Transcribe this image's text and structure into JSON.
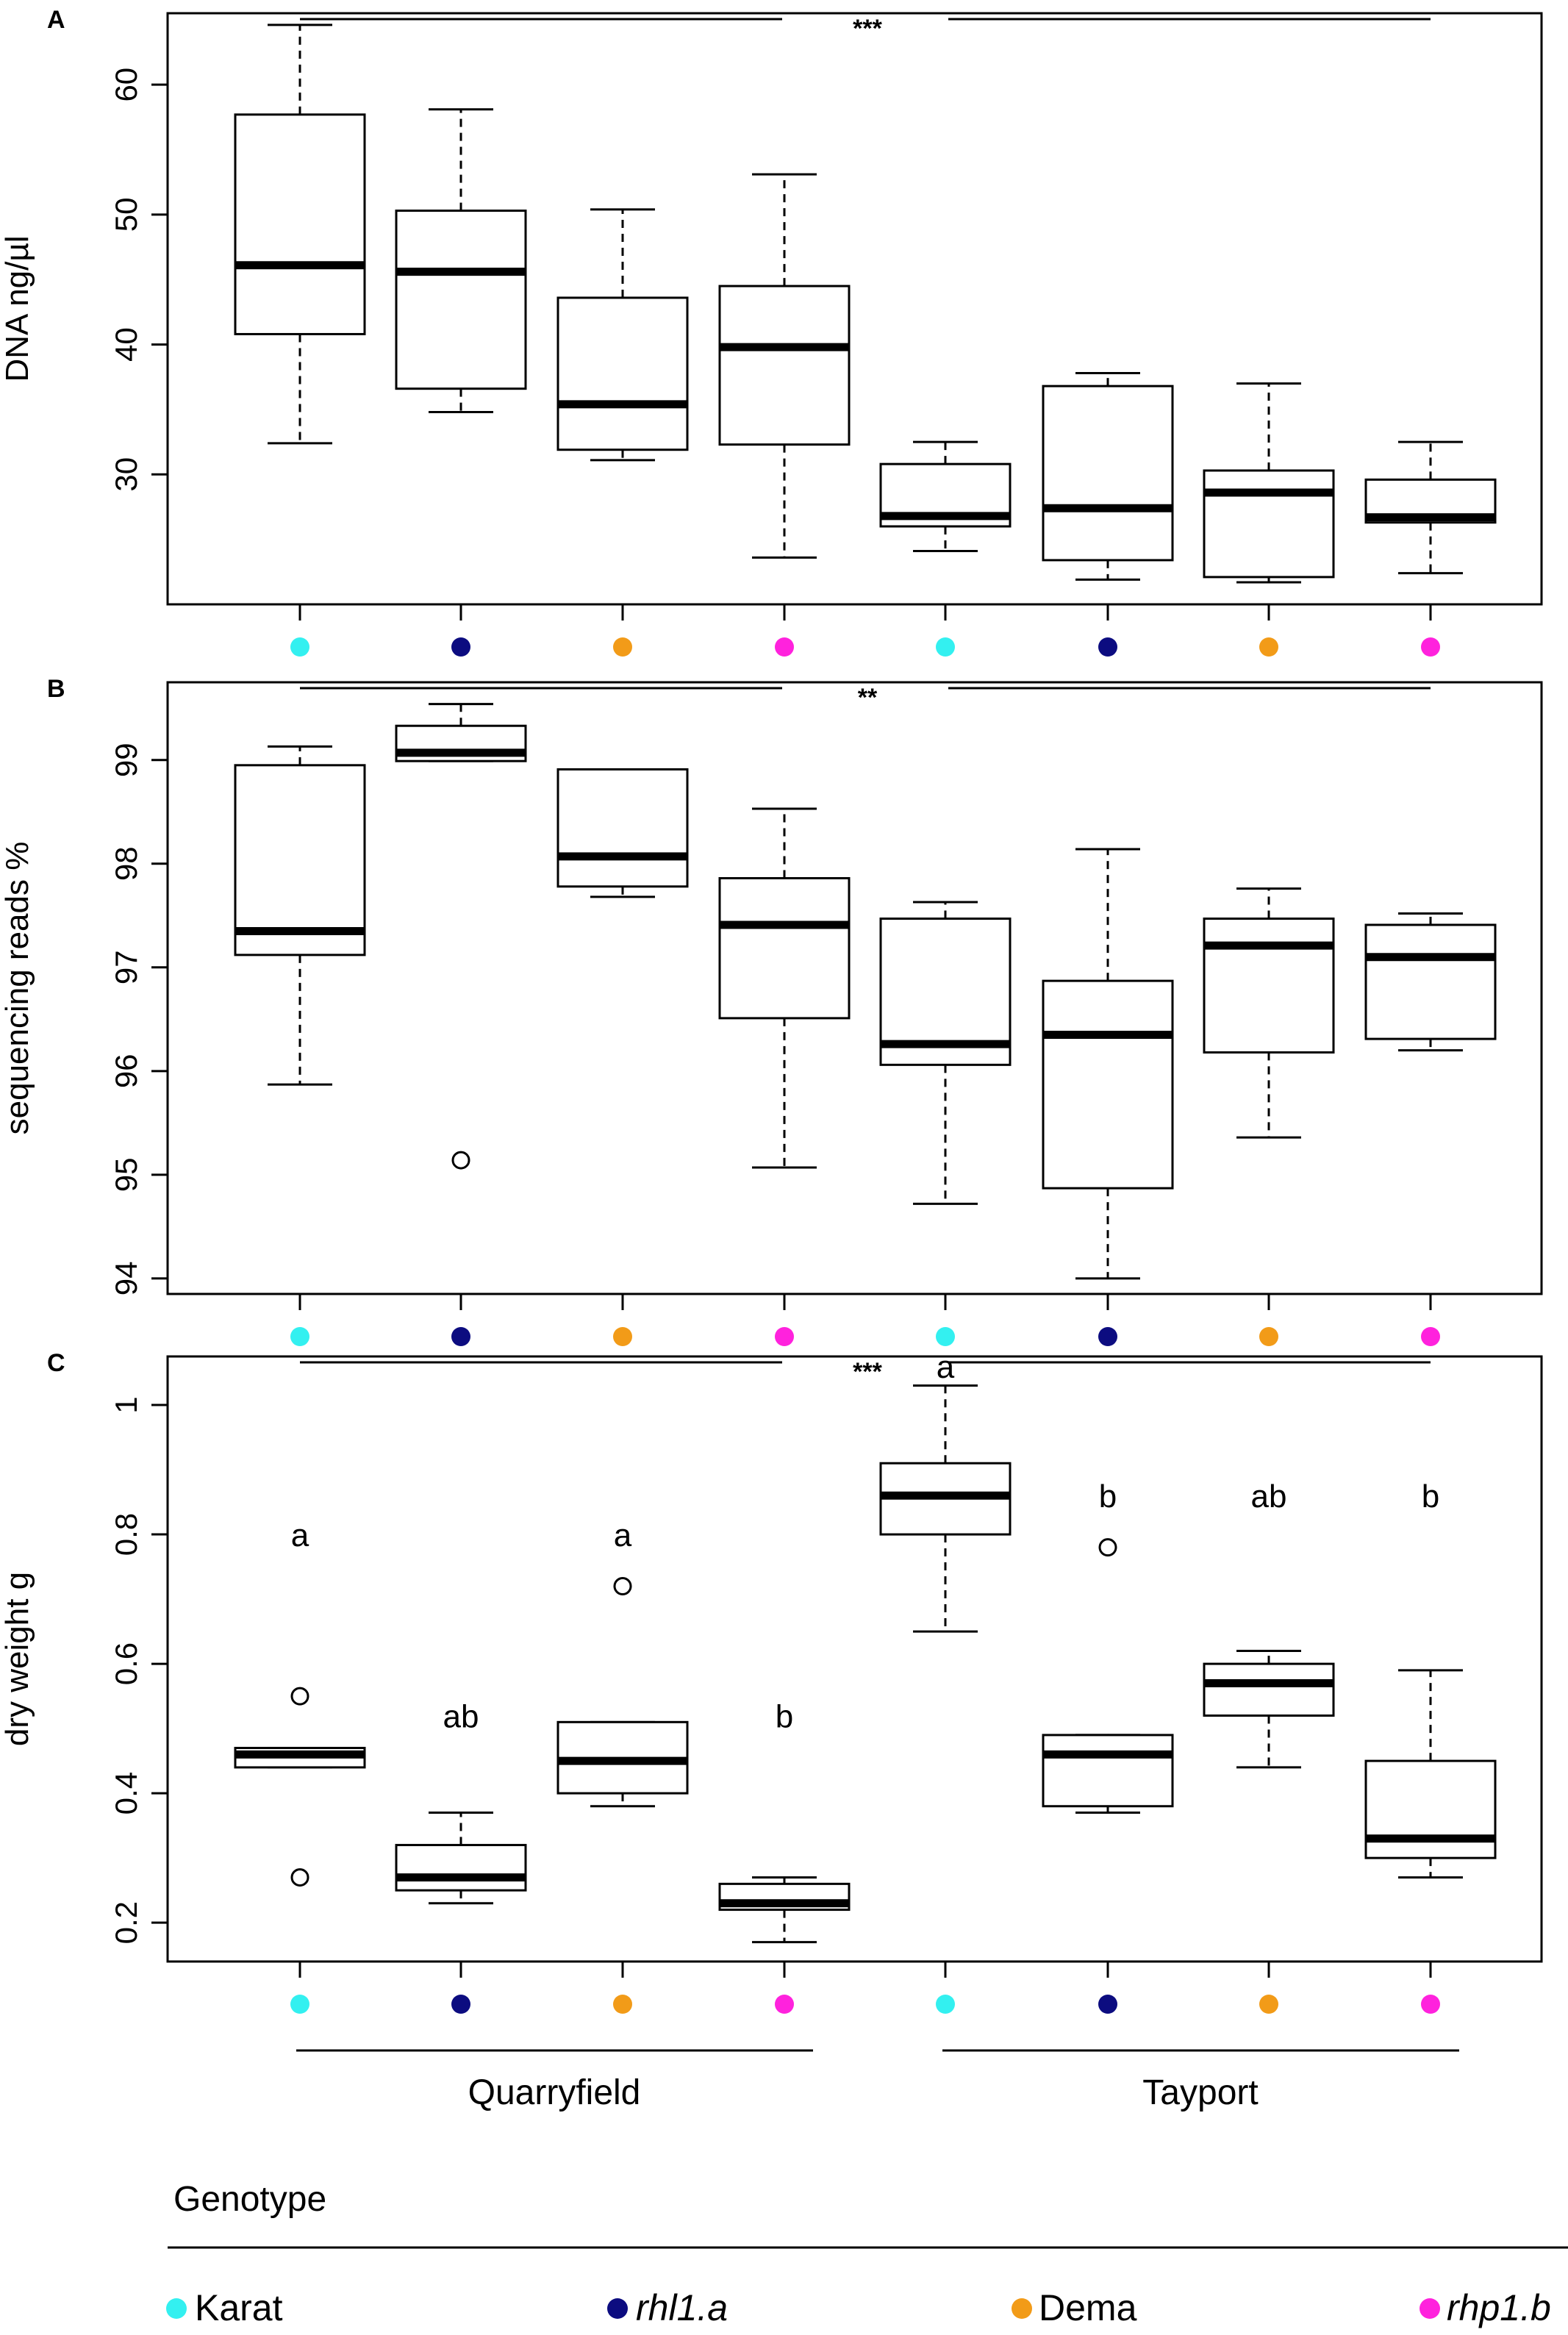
{
  "colors": {
    "Karat": "#33f0f0",
    "rhl1.a": "#0c0c80",
    "Dema": "#f29b18",
    "rhp1.b": "#ff22dd"
  },
  "chart_data": [
    {
      "type": "box",
      "panel": "A",
      "ylabel": "DNA ng/µl",
      "ylim": [
        20,
        65.5
      ],
      "yticks": [
        30,
        40,
        50,
        60
      ],
      "significance": "***",
      "groups": [
        {
          "genotype": "Karat",
          "site": "Quarryfield",
          "whisker_low": 32.4,
          "q1": 40.8,
          "median": 46.1,
          "q3": 57.7,
          "whisker_high": 64.6,
          "outliers": []
        },
        {
          "genotype": "rhl1.a",
          "site": "Quarryfield",
          "whisker_low": 34.8,
          "q1": 36.6,
          "median": 45.6,
          "q3": 50.3,
          "whisker_high": 58.1,
          "outliers": []
        },
        {
          "genotype": "Dema",
          "site": "Quarryfield",
          "whisker_low": 31.1,
          "q1": 31.9,
          "median": 35.4,
          "q3": 43.6,
          "whisker_high": 50.4,
          "outliers": []
        },
        {
          "genotype": "rhp1.b",
          "site": "Quarryfield",
          "whisker_low": 23.6,
          "q1": 32.3,
          "median": 39.8,
          "q3": 44.5,
          "whisker_high": 53.1,
          "outliers": []
        },
        {
          "genotype": "Karat",
          "site": "Tayport",
          "whisker_low": 24.1,
          "q1": 26.0,
          "median": 26.8,
          "q3": 30.8,
          "whisker_high": 32.5,
          "outliers": []
        },
        {
          "genotype": "rhl1.a",
          "site": "Tayport",
          "whisker_low": 21.9,
          "q1": 23.4,
          "median": 27.4,
          "q3": 36.8,
          "whisker_high": 37.8,
          "outliers": []
        },
        {
          "genotype": "Dema",
          "site": "Tayport",
          "whisker_low": 21.7,
          "q1": 22.1,
          "median": 28.6,
          "q3": 30.3,
          "whisker_high": 37.0,
          "outliers": []
        },
        {
          "genotype": "rhp1.b",
          "site": "Tayport",
          "whisker_low": 22.4,
          "q1": 26.3,
          "median": 26.7,
          "q3": 29.6,
          "whisker_high": 32.5,
          "outliers": []
        }
      ],
      "letters": []
    },
    {
      "type": "box",
      "panel": "B",
      "ylabel": "sequencing reads %",
      "ylim": [
        93.85,
        99.75
      ],
      "yticks": [
        94,
        95,
        96,
        97,
        98,
        99
      ],
      "significance": "**",
      "groups": [
        {
          "genotype": "Karat",
          "site": "Quarryfield",
          "whisker_low": 95.87,
          "q1": 97.12,
          "median": 97.35,
          "q3": 98.95,
          "whisker_high": 99.13,
          "outliers": []
        },
        {
          "genotype": "rhl1.a",
          "site": "Quarryfield",
          "whisker_low": 98.99,
          "q1": 98.99,
          "median": 99.07,
          "q3": 99.33,
          "whisker_high": 99.54,
          "outliers": [
            95.14
          ]
        },
        {
          "genotype": "Dema",
          "site": "Quarryfield",
          "whisker_low": 97.68,
          "q1": 97.78,
          "median": 98.07,
          "q3": 98.91,
          "whisker_high": 98.91,
          "outliers": []
        },
        {
          "genotype": "rhp1.b",
          "site": "Quarryfield",
          "whisker_low": 95.07,
          "q1": 96.51,
          "median": 97.41,
          "q3": 97.86,
          "whisker_high": 98.53,
          "outliers": []
        },
        {
          "genotype": "Karat",
          "site": "Tayport",
          "whisker_low": 94.72,
          "q1": 96.06,
          "median": 96.26,
          "q3": 97.47,
          "whisker_high": 97.63,
          "outliers": []
        },
        {
          "genotype": "rhl1.a",
          "site": "Tayport",
          "whisker_low": 94.0,
          "q1": 94.87,
          "median": 96.35,
          "q3": 96.87,
          "whisker_high": 98.14,
          "outliers": []
        },
        {
          "genotype": "Dema",
          "site": "Tayport",
          "whisker_low": 95.36,
          "q1": 96.18,
          "median": 97.21,
          "q3": 97.47,
          "whisker_high": 97.76,
          "outliers": []
        },
        {
          "genotype": "rhp1.b",
          "site": "Tayport",
          "whisker_low": 96.2,
          "q1": 96.31,
          "median": 97.1,
          "q3": 97.41,
          "whisker_high": 97.52,
          "outliers": []
        }
      ],
      "letters": []
    },
    {
      "type": "box",
      "panel": "C",
      "ylabel": "dry weight g",
      "ylim": [
        0.14,
        1.075
      ],
      "yticks": [
        0.2,
        0.4,
        0.6,
        0.8,
        1.0
      ],
      "significance": "***",
      "groups": [
        {
          "genotype": "Karat",
          "site": "Quarryfield",
          "whisker_low": 0.44,
          "q1": 0.44,
          "median": 0.46,
          "q3": 0.47,
          "whisker_high": 0.47,
          "outliers": [
            0.55,
            0.27
          ]
        },
        {
          "genotype": "rhl1.a",
          "site": "Quarryfield",
          "whisker_low": 0.23,
          "q1": 0.25,
          "median": 0.27,
          "q3": 0.32,
          "whisker_high": 0.37,
          "outliers": []
        },
        {
          "genotype": "Dema",
          "site": "Quarryfield",
          "whisker_low": 0.38,
          "q1": 0.4,
          "median": 0.45,
          "q3": 0.51,
          "whisker_high": 0.51,
          "outliers": [
            0.72
          ]
        },
        {
          "genotype": "rhp1.b",
          "site": "Quarryfield",
          "whisker_low": 0.17,
          "q1": 0.22,
          "median": 0.23,
          "q3": 0.26,
          "whisker_high": 0.27,
          "outliers": []
        },
        {
          "genotype": "Karat",
          "site": "Tayport",
          "whisker_low": 0.65,
          "q1": 0.8,
          "median": 0.86,
          "q3": 0.91,
          "whisker_high": 1.03,
          "outliers": []
        },
        {
          "genotype": "rhl1.a",
          "site": "Tayport",
          "whisker_low": 0.37,
          "q1": 0.38,
          "median": 0.46,
          "q3": 0.49,
          "whisker_high": 0.49,
          "outliers": [
            0.78
          ]
        },
        {
          "genotype": "Dema",
          "site": "Tayport",
          "whisker_low": 0.44,
          "q1": 0.52,
          "median": 0.57,
          "q3": 0.6,
          "whisker_high": 0.62,
          "outliers": []
        },
        {
          "genotype": "rhp1.b",
          "site": "Tayport",
          "whisker_low": 0.27,
          "q1": 0.3,
          "median": 0.33,
          "q3": 0.45,
          "whisker_high": 0.59,
          "outliers": []
        }
      ],
      "letters": [
        {
          "group": 0,
          "text": "a",
          "y": 0.8
        },
        {
          "group": 1,
          "text": "ab",
          "y": 0.52
        },
        {
          "group": 2,
          "text": "a",
          "y": 0.8
        },
        {
          "group": 3,
          "text": "b",
          "y": 0.52
        },
        {
          "group": 4,
          "text": "a",
          "y": 1.06
        },
        {
          "group": 5,
          "text": "b",
          "y": 0.86
        },
        {
          "group": 6,
          "text": "ab",
          "y": 0.86
        },
        {
          "group": 7,
          "text": "b",
          "y": 0.86
        }
      ]
    }
  ],
  "sites": [
    "Quarryfield",
    "Tayport"
  ],
  "legend": {
    "title": "Genotype",
    "items": [
      {
        "name": "Karat",
        "italic": false
      },
      {
        "name": "rhl1.a",
        "italic": true
      },
      {
        "name": "Dema",
        "italic": false
      },
      {
        "name": "rhp1.b",
        "italic": true
      }
    ]
  }
}
